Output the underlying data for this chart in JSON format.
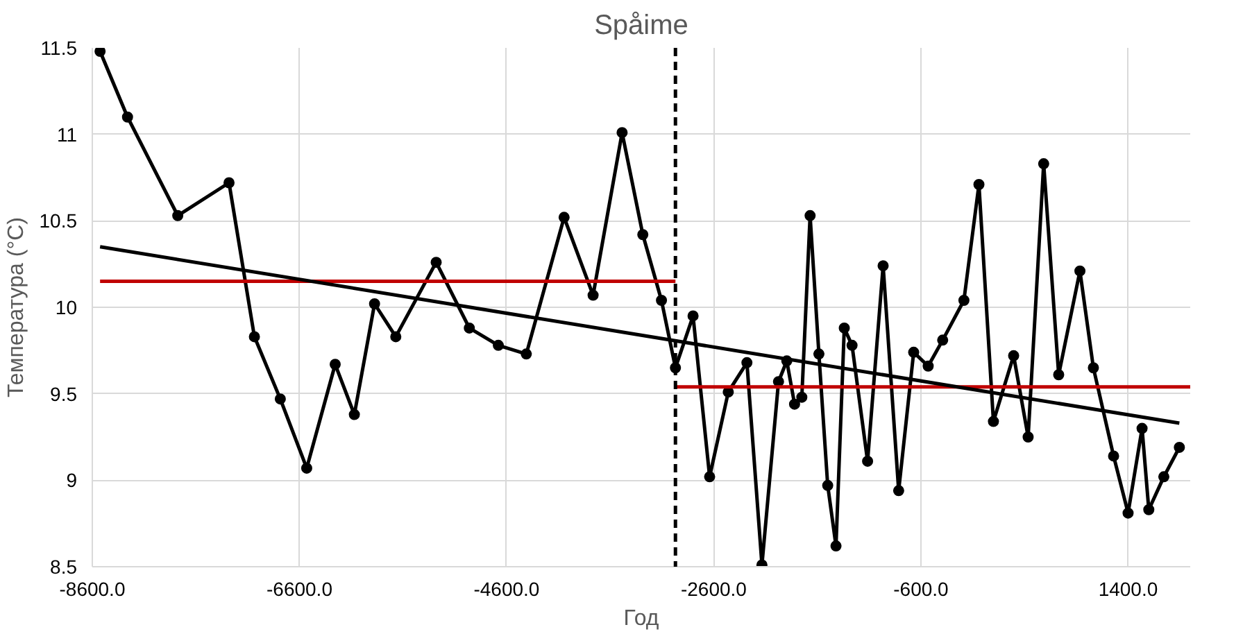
{
  "chart_data": {
    "type": "line",
    "title": "Spåime",
    "xlabel": "Год",
    "ylabel": "Температура (°C)",
    "xlim": [
      -8600,
      2000
    ],
    "ylim": [
      8.5,
      11.5
    ],
    "xticks": [
      {
        "value": -8600,
        "label": "-8600.0"
      },
      {
        "value": -6600,
        "label": "-6600.0"
      },
      {
        "value": -4600,
        "label": "-4600.0"
      },
      {
        "value": -2600,
        "label": "-2600.0"
      },
      {
        "value": -600,
        "label": "-600.0"
      },
      {
        "value": 1400,
        "label": "1400.0"
      }
    ],
    "yticks": [
      8.5,
      9,
      9.5,
      10,
      10.5,
      11,
      11.5
    ],
    "grid": true,
    "series": [
      {
        "color": "#000000",
        "marker": "circle",
        "line_style": "solid",
        "x": [
          -8525,
          -8260,
          -7775,
          -7280,
          -7035,
          -6785,
          -6530,
          -6255,
          -6070,
          -5875,
          -5670,
          -5280,
          -4960,
          -4680,
          -4410,
          -4045,
          -3765,
          -3485,
          -3285,
          -3105,
          -2970,
          -2800,
          -2640,
          -2460,
          -2280,
          -2135,
          -1975,
          -1895,
          -1820,
          -1750,
          -1670,
          -1585,
          -1500,
          -1420,
          -1340,
          -1265,
          -1115,
          -965,
          -815,
          -670,
          -530,
          -390,
          -185,
          -40,
          100,
          295,
          435,
          585,
          730,
          935,
          1065,
          1260,
          1400,
          1535,
          1600,
          1745,
          1895
        ],
        "values": [
          11.48,
          11.1,
          10.53,
          10.72,
          9.83,
          9.47,
          9.07,
          9.67,
          9.38,
          10.02,
          9.83,
          10.26,
          9.88,
          9.78,
          9.73,
          10.52,
          10.07,
          11.01,
          10.42,
          10.04,
          9.65,
          9.95,
          9.02,
          9.51,
          9.68,
          8.51,
          9.57,
          9.69,
          9.44,
          9.48,
          10.53,
          9.73,
          8.97,
          8.62,
          9.88,
          9.78,
          9.11,
          10.24,
          8.94,
          9.74,
          9.66,
          9.81,
          10.04,
          10.71,
          9.34,
          9.72,
          9.25,
          10.83,
          9.61,
          10.21,
          9.65,
          9.14,
          8.81,
          9.3,
          8.83,
          9.02,
          9.19
        ]
      },
      {
        "color": "#c00000",
        "marker": "none",
        "line_style": "solid",
        "x": [
          -8525,
          -2970
        ],
        "values": [
          10.15,
          10.15
        ]
      },
      {
        "color": "#c00000",
        "marker": "none",
        "line_style": "solid",
        "x": [
          -2970,
          2000
        ],
        "values": [
          9.54,
          9.54
        ]
      },
      {
        "color": "#000000",
        "marker": "none",
        "line_style": "solid",
        "x": [
          -8525,
          1895
        ],
        "values": [
          10.35,
          9.33
        ]
      }
    ],
    "ref_lines": [
      {
        "axis": "x",
        "value": -2970,
        "color": "#000000",
        "line_style": "dashed"
      }
    ]
  }
}
